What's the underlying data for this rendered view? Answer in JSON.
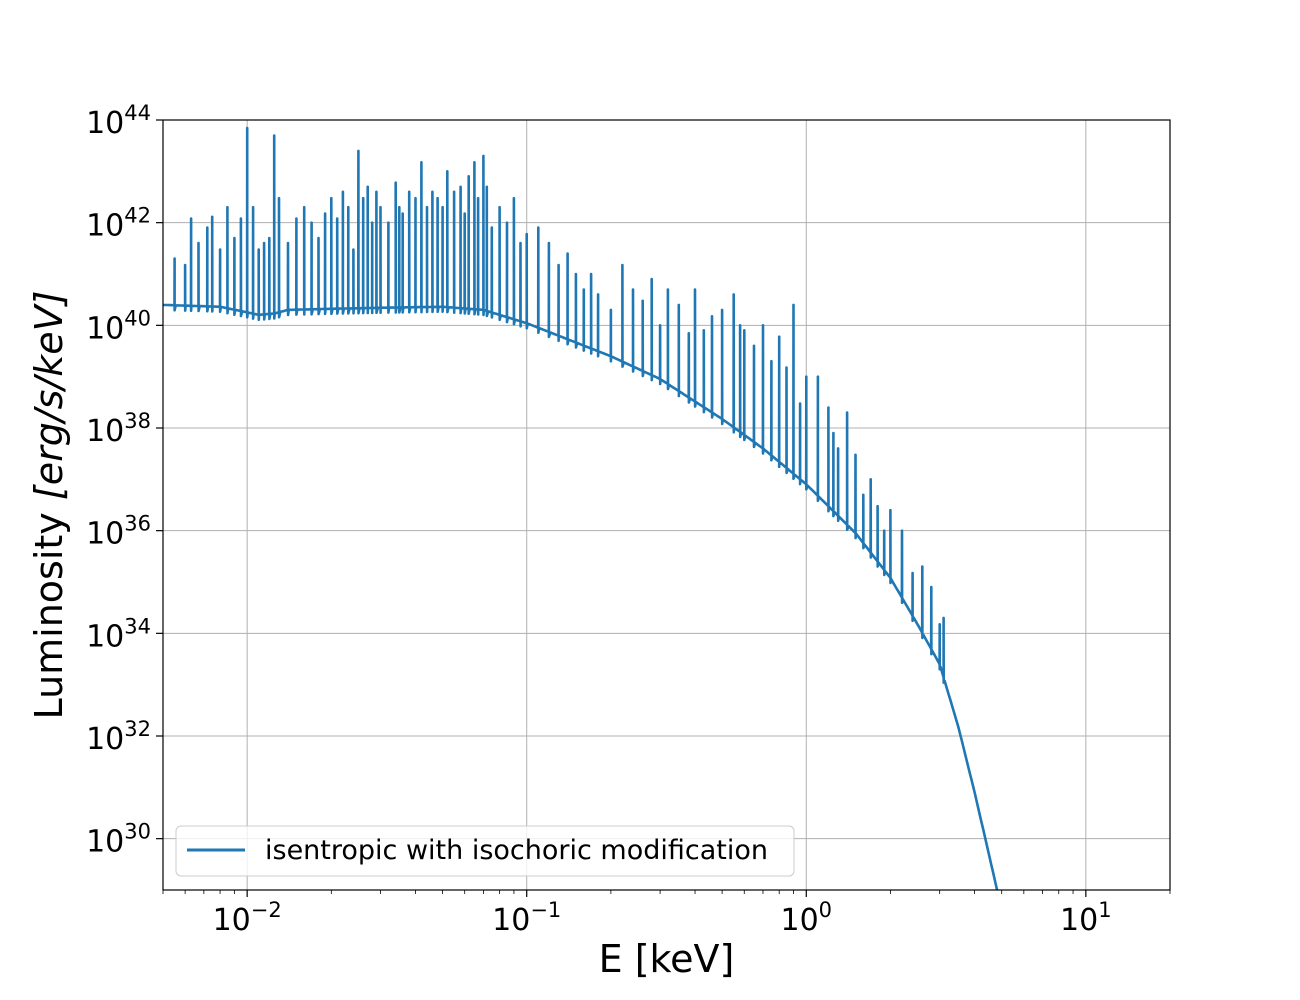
{
  "chart_data": {
    "type": "line",
    "xscale": "log",
    "yscale": "log",
    "xlabel": "E [keV]",
    "ylabel_text": "Luminosity ",
    "ylabel_units": "[erg/s/keV]",
    "xlim": [
      0.005,
      20
    ],
    "ylim": [
      1e+29,
      1e+44
    ],
    "grid": true,
    "legend_position": "lower-left",
    "x_ticks": [
      {
        "value": 0.01,
        "base": "10",
        "exp": "−2"
      },
      {
        "value": 0.1,
        "base": "10",
        "exp": "−1"
      },
      {
        "value": 1,
        "base": "10",
        "exp": "0"
      },
      {
        "value": 10,
        "base": "10",
        "exp": "1"
      }
    ],
    "y_ticks": [
      {
        "value": 1e+30,
        "base": "10",
        "exp": "30"
      },
      {
        "value": 1e+32,
        "base": "10",
        "exp": "32"
      },
      {
        "value": 1e+34,
        "base": "10",
        "exp": "34"
      },
      {
        "value": 1e+36,
        "base": "10",
        "exp": "36"
      },
      {
        "value": 1e+38,
        "base": "10",
        "exp": "38"
      },
      {
        "value": 1e+40,
        "base": "10",
        "exp": "40"
      },
      {
        "value": 1e+42,
        "base": "10",
        "exp": "42"
      },
      {
        "value": 1e+44,
        "base": "10",
        "exp": "44"
      }
    ],
    "series": [
      {
        "name": "isentropic with isochoric modification",
        "color": "#1f77b4",
        "continuum": [
          [
            0.005,
            2.5e+40
          ],
          [
            0.008,
            2.3e+40
          ],
          [
            0.0095,
            1.9e+40
          ],
          [
            0.011,
            1.6e+40
          ],
          [
            0.0125,
            1.7e+40
          ],
          [
            0.014,
            2e+40
          ],
          [
            0.02,
            2.1e+40
          ],
          [
            0.03,
            2.2e+40
          ],
          [
            0.05,
            2.3e+40
          ],
          [
            0.07,
            2e+40
          ],
          [
            0.1,
            1.1e+40
          ],
          [
            0.2,
            2.5e+39
          ],
          [
            0.3,
            9e+38
          ],
          [
            0.5,
            1.5e+38
          ],
          [
            0.7,
            4e+37
          ],
          [
            1.0,
            8e+36
          ],
          [
            1.5,
            9e+35
          ],
          [
            2.0,
            1.2e+35
          ],
          [
            2.5,
            1.5e+34
          ],
          [
            3.0,
            2.5e+33
          ],
          [
            3.5,
            1.5e+32
          ],
          [
            4.0,
            8e+30
          ],
          [
            4.5,
            5e+29
          ],
          [
            5.0,
            4e+28
          ]
        ],
        "peaks": [
          [
            0.0055,
            2e+41
          ],
          [
            0.006,
            1.5e+41
          ],
          [
            0.0063,
            1.2e+42
          ],
          [
            0.0067,
            4e+41
          ],
          [
            0.0072,
            8e+41
          ],
          [
            0.0075,
            1.3e+42
          ],
          [
            0.008,
            3e+41
          ],
          [
            0.0085,
            2e+42
          ],
          [
            0.009,
            5e+41
          ],
          [
            0.0095,
            1.2e+42
          ],
          [
            0.01,
            7e+43
          ],
          [
            0.0105,
            2e+42
          ],
          [
            0.011,
            3e+41
          ],
          [
            0.0115,
            4e+41
          ],
          [
            0.012,
            5e+41
          ],
          [
            0.0125,
            5e+43
          ],
          [
            0.013,
            3e+42
          ],
          [
            0.014,
            4e+41
          ],
          [
            0.015,
            1.2e+42
          ],
          [
            0.016,
            2e+42
          ],
          [
            0.017,
            1e+42
          ],
          [
            0.018,
            5e+41
          ],
          [
            0.019,
            1.5e+42
          ],
          [
            0.02,
            3e+42
          ],
          [
            0.021,
            1.2e+42
          ],
          [
            0.022,
            4e+42
          ],
          [
            0.023,
            2e+42
          ],
          [
            0.024,
            3e+41
          ],
          [
            0.025,
            2.5e+43
          ],
          [
            0.026,
            3e+42
          ],
          [
            0.027,
            5e+42
          ],
          [
            0.028,
            1e+42
          ],
          [
            0.029,
            4e+42
          ],
          [
            0.03,
            2e+42
          ],
          [
            0.032,
            1e+42
          ],
          [
            0.034,
            6e+42
          ],
          [
            0.035,
            2e+42
          ],
          [
            0.036,
            1.5e+42
          ],
          [
            0.038,
            4e+42
          ],
          [
            0.04,
            3e+42
          ],
          [
            0.042,
            1.5e+43
          ],
          [
            0.044,
            2e+42
          ],
          [
            0.046,
            4e+42
          ],
          [
            0.048,
            3e+42
          ],
          [
            0.05,
            2e+42
          ],
          [
            0.052,
            1e+43
          ],
          [
            0.055,
            4e+42
          ],
          [
            0.058,
            5e+42
          ],
          [
            0.06,
            1.5e+42
          ],
          [
            0.062,
            8e+42
          ],
          [
            0.065,
            1.5e+43
          ],
          [
            0.067,
            3e+42
          ],
          [
            0.07,
            2e+43
          ],
          [
            0.072,
            5e+42
          ],
          [
            0.075,
            8e+41
          ],
          [
            0.08,
            2e+42
          ],
          [
            0.085,
            1e+42
          ],
          [
            0.09,
            3e+42
          ],
          [
            0.095,
            4e+41
          ],
          [
            0.1,
            6e+41
          ],
          [
            0.11,
            8e+41
          ],
          [
            0.12,
            4e+41
          ],
          [
            0.13,
            1.5e+41
          ],
          [
            0.14,
            2.5e+41
          ],
          [
            0.15,
            1e+41
          ],
          [
            0.16,
            5e+40
          ],
          [
            0.17,
            1e+41
          ],
          [
            0.18,
            4e+40
          ],
          [
            0.2,
            2e+40
          ],
          [
            0.22,
            1.5e+41
          ],
          [
            0.24,
            5e+40
          ],
          [
            0.26,
            3e+40
          ],
          [
            0.28,
            8e+40
          ],
          [
            0.3,
            1e+40
          ],
          [
            0.32,
            5e+40
          ],
          [
            0.35,
            2.5e+40
          ],
          [
            0.38,
            7e+39
          ],
          [
            0.4,
            5e+40
          ],
          [
            0.43,
            8e+39
          ],
          [
            0.46,
            1.5e+40
          ],
          [
            0.5,
            2e+40
          ],
          [
            0.55,
            4e+40
          ],
          [
            0.58,
            1e+40
          ],
          [
            0.6,
            8e+39
          ],
          [
            0.65,
            4e+39
          ],
          [
            0.7,
            1e+40
          ],
          [
            0.75,
            2e+39
          ],
          [
            0.8,
            6e+39
          ],
          [
            0.85,
            1.5e+39
          ],
          [
            0.9,
            2.5e+40
          ],
          [
            0.95,
            3e+38
          ],
          [
            1.0,
            1e+39
          ],
          [
            1.1,
            1e+39
          ],
          [
            1.2,
            2.5e+38
          ],
          [
            1.25,
            8e+37
          ],
          [
            1.3,
            4e+37
          ],
          [
            1.4,
            2e+38
          ],
          [
            1.5,
            3e+37
          ],
          [
            1.6,
            5e+36
          ],
          [
            1.7,
            1e+37
          ],
          [
            1.8,
            3e+36
          ],
          [
            1.9,
            1e+36
          ],
          [
            2.0,
            2.5e+36
          ],
          [
            2.2,
            1e+36
          ],
          [
            2.4,
            1.5e+35
          ],
          [
            2.6,
            2e+35
          ],
          [
            2.8,
            8e+34
          ],
          [
            3.0,
            1.5e+34
          ],
          [
            3.1,
            2e+34
          ]
        ]
      }
    ]
  }
}
